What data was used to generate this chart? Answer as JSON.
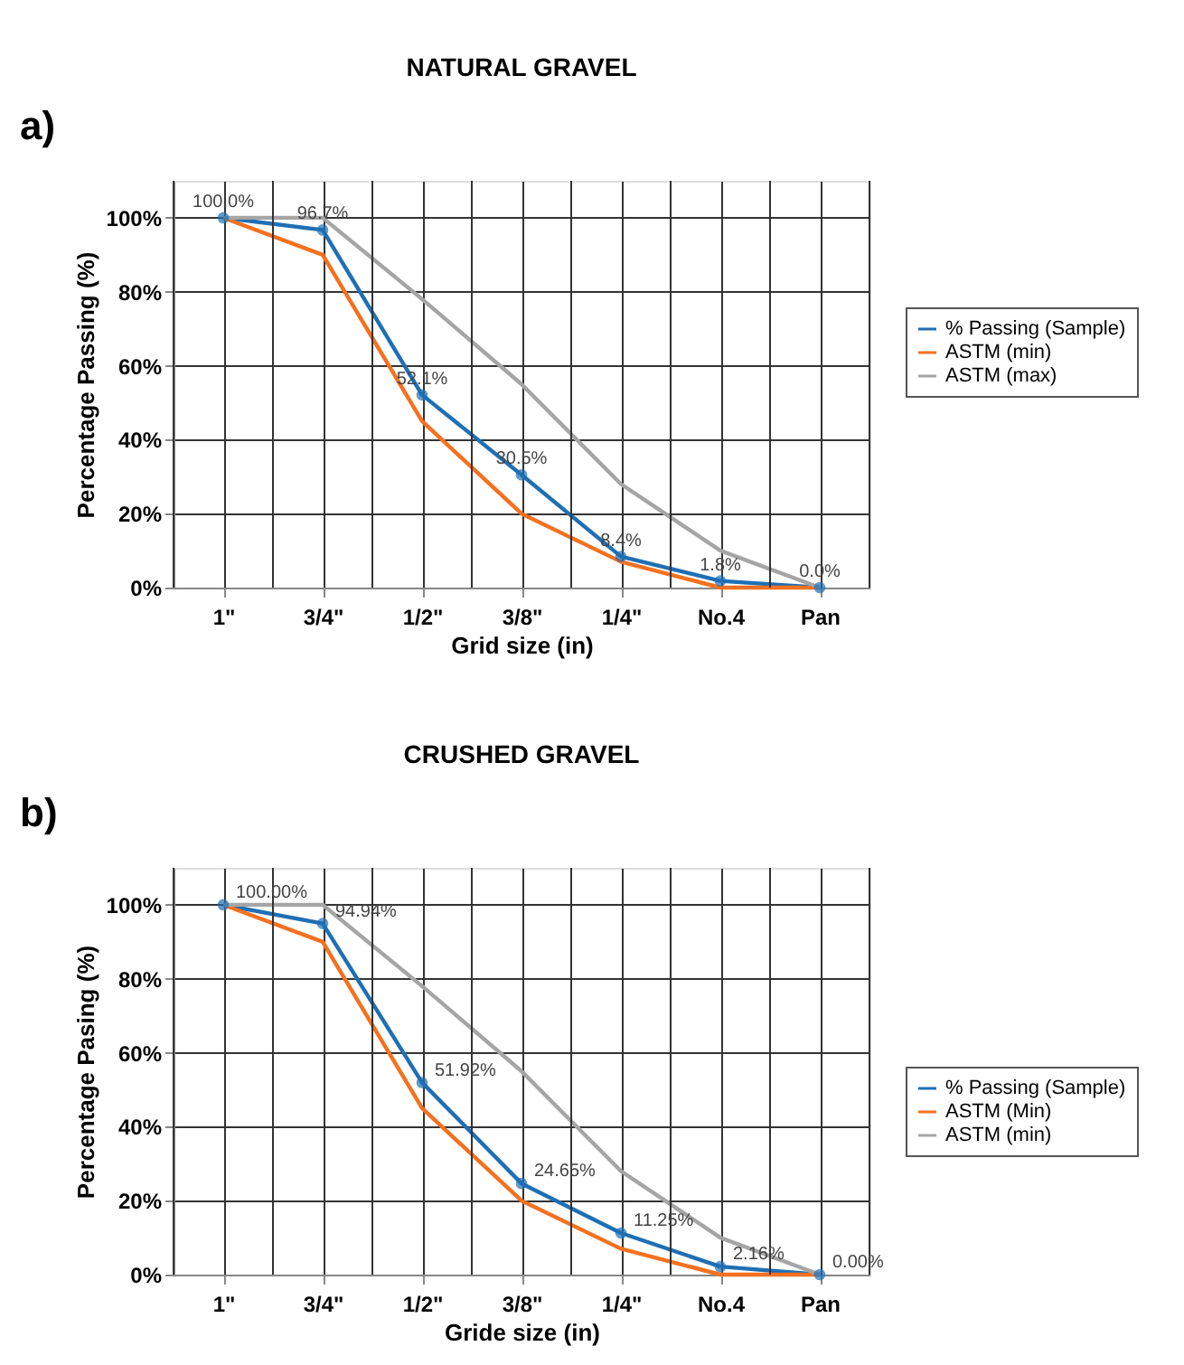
{
  "chart_data": [
    {
      "type": "line",
      "title": "NATURAL GRAVEL",
      "xlabel": "Grid size (in)",
      "ylabel": "Percentage Passing (%)",
      "annotations": [
        "a)"
      ],
      "categories": [
        "1\"",
        "3/4\"",
        "1/2\"",
        "3/8\"",
        "1/4\"",
        "No.4",
        "Pan"
      ],
      "series": [
        {
          "name": "% Passing (Sample)",
          "color": "#1f6fb4",
          "marker": "circle",
          "values": [
            100,
            96.7,
            52.1,
            30.5,
            8.4,
            1.8,
            0
          ],
          "value_labels": [
            "100.0%",
            "96.7%",
            "52.1%",
            "30.5%",
            "8.4%",
            "1.8%",
            "0.0%"
          ]
        },
        {
          "name": "ASTM (min)",
          "color": "#f4711f",
          "marker": "none",
          "values": [
            100,
            90,
            45,
            20,
            7,
            0,
            0
          ]
        },
        {
          "name": "ASTM (max)",
          "color": "#a5a5a5",
          "marker": "none",
          "values": [
            100,
            100,
            78,
            55,
            28,
            10,
            0
          ]
        }
      ],
      "ylim": [
        0,
        110
      ],
      "yticks": [
        {
          "value": 0,
          "label": "0%"
        },
        {
          "value": 20,
          "label": "20%"
        },
        {
          "value": 40,
          "label": "40%"
        },
        {
          "value": 60,
          "label": "60%"
        },
        {
          "value": 80,
          "label": "80%"
        },
        {
          "value": 100,
          "label": "100%"
        }
      ],
      "grid": true,
      "legend": "right",
      "line_style": "solid"
    },
    {
      "type": "line",
      "title": "CRUSHED GRAVEL",
      "xlabel": "Gride size (in)",
      "ylabel": "Percentage Pasing (%)",
      "annotations": [
        "b)"
      ],
      "categories": [
        "1\"",
        "3/4\"",
        "1/2\"",
        "3/8\"",
        "1/4\"",
        "No.4",
        "Pan"
      ],
      "series": [
        {
          "name": "% Passing (Sample)",
          "color": "#1f6fb4",
          "marker": "circle",
          "values": [
            100,
            94.94,
            51.92,
            24.65,
            11.25,
            2.16,
            0
          ],
          "value_labels": [
            "100.00%",
            "94.94%",
            "51.92%",
            "24.65%",
            "11.25%",
            "2.16%",
            "0.00%"
          ]
        },
        {
          "name": "ASTM (Min)",
          "color": "#f4711f",
          "marker": "none",
          "values": [
            100,
            90,
            45,
            20,
            7,
            0,
            0
          ]
        },
        {
          "name": "ASTM (min)",
          "color": "#a5a5a5",
          "marker": "none",
          "values": [
            100,
            100,
            78,
            55,
            28,
            10,
            0
          ]
        }
      ],
      "ylim": [
        0,
        110
      ],
      "yticks": [
        {
          "value": 0,
          "label": "0%"
        },
        {
          "value": 20,
          "label": "20%"
        },
        {
          "value": 40,
          "label": "40%"
        },
        {
          "value": 60,
          "label": "60%"
        },
        {
          "value": 80,
          "label": "80%"
        },
        {
          "value": 100,
          "label": "100%"
        }
      ],
      "grid": true,
      "legend": "bottom right",
      "line_style": "solid"
    }
  ]
}
